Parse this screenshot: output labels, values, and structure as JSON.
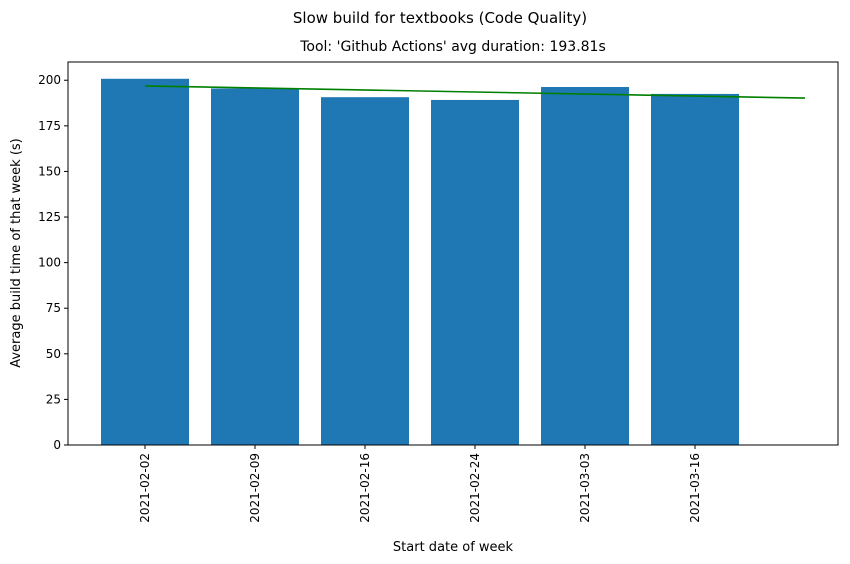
{
  "chart_data": {
    "type": "bar",
    "title": "Slow build for textbooks (Code Quality)",
    "subtitle": "Tool: 'Github Actions' avg duration: 193.81s",
    "xlabel": "Start date of week",
    "ylabel": "Average build time of that week (s)",
    "categories": [
      "2021-02-02",
      "2021-02-09",
      "2021-02-16",
      "2021-02-24",
      "2021-03-03",
      "2021-03-16"
    ],
    "values": [
      200.8,
      195.5,
      190.7,
      189.2,
      196.3,
      192.5
    ],
    "trend_line": {
      "x_start": 0,
      "x_end": 6,
      "y_start": 196.9,
      "y_end": 190.2
    },
    "ylim": [
      0,
      210
    ],
    "yticks": [
      0,
      25,
      50,
      75,
      100,
      125,
      150,
      175,
      200
    ],
    "grid": false,
    "bar_color": "#1f77b4",
    "trend_color": "#008000"
  }
}
